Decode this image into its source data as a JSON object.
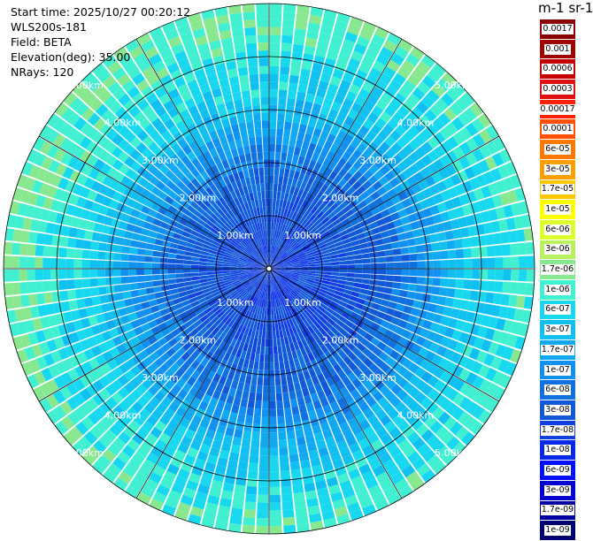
{
  "info": {
    "start_time": "Start time: 2025/10/27 00:20:12",
    "instrument": "WLS200s-181",
    "field": "Field: BETA",
    "elevation": "Elevation(deg): 35.00",
    "nrays": "NRays: 120"
  },
  "colorbar": {
    "title": "m-1 sr-1",
    "ticks": [
      "0.0017",
      "0.001",
      "0.0006",
      "0.0003",
      "0.00017",
      "0.0001",
      "6e-05",
      "3e-05",
      "1.7e-05",
      "1e-05",
      "6e-06",
      "3e-06",
      "1.7e-06",
      "1e-06",
      "6e-07",
      "3e-07",
      "1.7e-07",
      "1e-07",
      "6e-08",
      "3e-08",
      "1.7e-08",
      "1e-08",
      "6e-09",
      "3e-09",
      "1.7e-09",
      "1e-09"
    ],
    "colors": [
      "#8b0000",
      "#a00000",
      "#c40000",
      "#e01010",
      "#ff2000",
      "#ff5000",
      "#ff7800",
      "#ffa000",
      "#ffc800",
      "#ffff00",
      "#ddff30",
      "#b8f060",
      "#88e890",
      "#40f0d0",
      "#18d8f0",
      "#10c0f0",
      "#10a8f0",
      "#1090f0",
      "#1070e0",
      "#1058d8",
      "#1040e0",
      "#0828e8",
      "#0010ff",
      "#0000d0",
      "#0000a0",
      "#000070"
    ]
  },
  "chart_data": {
    "type": "ppi",
    "title": "",
    "field": "BETA",
    "units": "m-1 sr-1",
    "elevation_deg": 35.0,
    "n_rays": 120,
    "range_rings_km": [
      1.0,
      2.0,
      3.0,
      4.0,
      5.0
    ],
    "range_labels": [
      "1.00km",
      "2.00km",
      "3.00km",
      "4.00km",
      "5.00km"
    ],
    "max_range_km": 5.0,
    "scale": "log",
    "value_range": [
      1e-09,
      0.0017
    ],
    "radial_profile": [
      {
        "range_km": 0.2,
        "value": 2e-08
      },
      {
        "range_km": 1.0,
        "value": 3e-08
      },
      {
        "range_km": 2.0,
        "value": 6e-08
      },
      {
        "range_km": 2.8,
        "value": 1.7e-07
      },
      {
        "range_km": 3.5,
        "value": 6e-07
      },
      {
        "range_km": 4.3,
        "value": 1e-06
      },
      {
        "range_km": 5.0,
        "value": 1.7e-06
      }
    ]
  }
}
